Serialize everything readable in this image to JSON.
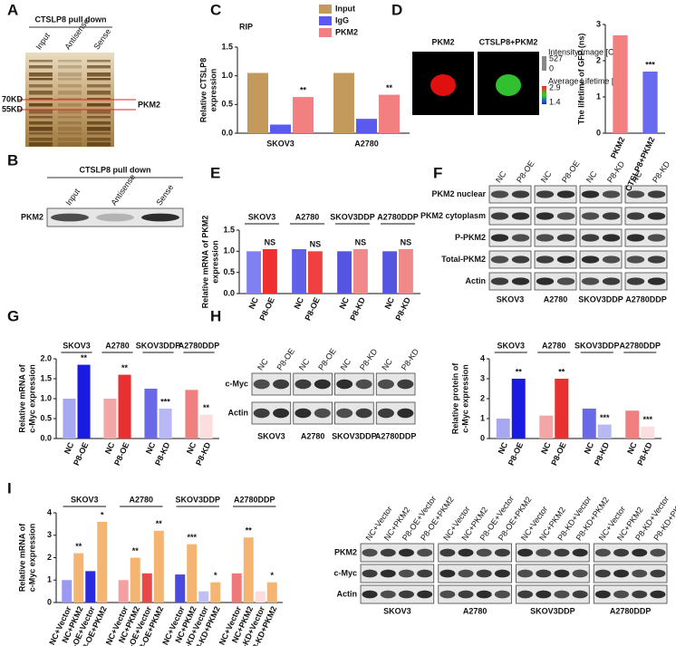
{
  "panels": [
    "A",
    "B",
    "C",
    "D",
    "E",
    "F",
    "G",
    "H",
    "I"
  ],
  "blots": {
    "a": {
      "title": "CTSLP8 pull down",
      "lanes": [
        "Input",
        "Antisense",
        "Sense"
      ],
      "markers": [
        "70KD",
        "55KD"
      ],
      "band": "PKM2"
    },
    "b": {
      "title": "CTSLP8 pull down",
      "lanes": [
        "Input",
        "Antisense",
        "Sense"
      ],
      "rows": [
        "PKM2"
      ]
    },
    "d": {
      "labels": [
        "PKM2",
        "CTSLP8+PKM2"
      ],
      "scale": [
        "Intensity Image [Cnts]",
        "527",
        "0",
        "Average Lifetime [ns]",
        "2.9",
        "1.4"
      ]
    },
    "f": {
      "lanes": [
        "NC",
        "P8-OE",
        "NC",
        "P8-OE",
        "NC",
        "P8-KD",
        "NC",
        "P8-KD"
      ],
      "rows": [
        "PKM2 nuclear",
        "PKM2 cytoplasm",
        "P-PKM2",
        "Total-PKM2",
        "Actin"
      ],
      "cells": [
        "SKOV3",
        "A2780",
        "SKOV3DDP",
        "A2780DDP"
      ]
    },
    "h": {
      "lanes": [
        "NC",
        "P8-OE",
        "NC",
        "P8-OE",
        "NC",
        "P8-KD",
        "NC",
        "P8-KD"
      ],
      "rows": [
        "c-Myc",
        "Actin"
      ],
      "cells": [
        "SKOV3",
        "A2780",
        "SKOV3DDP",
        "A2780DDP"
      ]
    },
    "i": {
      "lanes": [
        "NC+Vector",
        "NC+PKM2",
        "P8-OE+Vector",
        "P8-OE+PKM2",
        "NC+Vector",
        "NC+PKM2",
        "P8-OE+Vector",
        "P8-OE+PKM2",
        "NC+Vector",
        "NC+PKM2",
        "P8-KD+Vector",
        "P8-KD+PKM2",
        "NC+Vector",
        "NC+PKM2",
        "P8-KD+Vector",
        "P8-KD+PKM2"
      ],
      "rows": [
        "PKM2",
        "c-Myc",
        "Actin"
      ],
      "cells": [
        "SKOV3",
        "A2780",
        "SKOV3DDP",
        "A2780DDP"
      ]
    }
  },
  "chart_data": [
    {
      "type": "bar",
      "title": "RIP",
      "ylabel": [
        "Relative CTSLP8",
        "expression"
      ],
      "categories": [
        "SKOV3",
        "A2780"
      ],
      "series": [
        {
          "name": "Input",
          "color": "#c49a5c",
          "values": [
            1.05,
            1.05
          ]
        },
        {
          "name": "IgG",
          "color": "#5a5af0",
          "values": [
            0.15,
            0.25
          ]
        },
        {
          "name": "PKM2",
          "color": "#f28080",
          "values": [
            0.63,
            0.67
          ],
          "annotations": [
            "**",
            "**"
          ]
        }
      ],
      "ylim": [
        0,
        1.5
      ],
      "yticks": [
        {
          "value": 0,
          "label": "0.0"
        },
        {
          "value": 0.5,
          "label": "0.5"
        },
        {
          "value": 1,
          "label": "1.0"
        },
        {
          "value": 1.5,
          "label": "1.5"
        }
      ]
    },
    {
      "type": "bar",
      "ylabel": [
        "The lifetime of GFP (ns)"
      ],
      "categories": [
        "PKM2",
        "CTSLP8+PKM2"
      ],
      "values": [
        2.7,
        1.7
      ],
      "colors": [
        "#f28080",
        "#6a6af0"
      ],
      "annotations": [
        null,
        "***"
      ],
      "ylim": [
        0,
        3
      ],
      "yticks": [
        0,
        1,
        2,
        3
      ]
    },
    {
      "type": "bar",
      "ylabel": [
        "Relative mRNA of PKM2",
        "expression"
      ],
      "groups": [
        "SKOV3",
        "A2780",
        "SKOV3DDP",
        "A2780DDP"
      ],
      "categories": [
        "NC",
        "P8-OE",
        "NC",
        "P8-OE",
        "NC",
        "P8-KD",
        "NC",
        "P8-KD"
      ],
      "values": [
        1.0,
        1.05,
        1.05,
        1.0,
        1.0,
        1.05,
        1.0,
        1.05
      ],
      "colors": [
        "#8080f0",
        "#f03030",
        "#6060e8",
        "#f04040",
        "#5555e0",
        "#f08a8a",
        "#5555e0",
        "#f08a8a"
      ],
      "annotations": [
        null,
        "NS",
        null,
        "NS",
        null,
        "NS",
        null,
        "NS"
      ],
      "ylim": [
        0,
        1.5
      ],
      "yticks": [
        {
          "value": 0,
          "label": "0.0"
        },
        {
          "value": 0.5,
          "label": "0.5"
        },
        {
          "value": 1,
          "label": "1.0"
        },
        {
          "value": 1.5,
          "label": "1.5"
        }
      ]
    },
    {
      "type": "bar",
      "ylabel": [
        "Relative mRNA of",
        "c-Myc expression"
      ],
      "groups": [
        "SKOV3",
        "A2780",
        "SKOV3DDP",
        "A2780DDP"
      ],
      "categories": [
        "NC",
        "P8-OE",
        "NC",
        "P8-OE",
        "NC",
        "P8-KD",
        "NC",
        "P8-KD"
      ],
      "values": [
        1.0,
        1.85,
        1.0,
        1.6,
        1.25,
        0.75,
        1.22,
        0.6
      ],
      "colors": [
        "#a8a8f0",
        "#1a1ae0",
        "#f4a6a6",
        "#e83030",
        "#6a6ae8",
        "#b8b8f4",
        "#f08080",
        "#fcdede"
      ],
      "annotations": [
        null,
        "**",
        null,
        "**",
        null,
        "***",
        null,
        "**"
      ],
      "ylim": [
        0,
        2
      ],
      "yticks": [
        {
          "value": 0,
          "label": "0.0"
        },
        {
          "value": 0.5,
          "label": "0.5"
        },
        {
          "value": 1,
          "label": "1.0"
        },
        {
          "value": 1.5,
          "label": "1.5"
        },
        {
          "value": 2,
          "label": "2.0"
        }
      ]
    },
    {
      "type": "bar",
      "ylabel": [
        "Relative protein of",
        "c-Myc expression"
      ],
      "groups": [
        "SKOV3",
        "A2780",
        "SKOV3DDP",
        "A2780DDP"
      ],
      "categories": [
        "NC",
        "P8-OE",
        "NC",
        "P8-OE",
        "NC",
        "P8-KD",
        "NC",
        "P8-KD"
      ],
      "values": [
        1.0,
        3.0,
        1.15,
        3.0,
        1.5,
        0.7,
        1.4,
        0.6
      ],
      "colors": [
        "#a8a8f0",
        "#1a1ae0",
        "#f4a6a6",
        "#e83030",
        "#6a6ae8",
        "#b8b8f4",
        "#f08080",
        "#fcdede"
      ],
      "annotations": [
        null,
        "**",
        null,
        "**",
        null,
        "***",
        null,
        "***"
      ],
      "ylim": [
        0,
        4
      ],
      "yticks": [
        0,
        1,
        2,
        3,
        4
      ]
    },
    {
      "type": "bar",
      "ylabel": [
        "Relative mRNA of",
        "c-Myc expression"
      ],
      "groups": [
        "SKOV3",
        "A2780",
        "SKOV3DDP",
        "A2780DDP"
      ],
      "categories": [
        "NC+Vector",
        "NC+PKM2",
        "P8-OE+Vector",
        "P8-OE+PKM2",
        "NC+Vector",
        "NC+PKM2",
        "P8-OE+Vector",
        "P8-OE+PKM2",
        "NC+Vector",
        "NC+PKM2",
        "P8-KD+Vector",
        "P8-KD+PKM2",
        "NC+Vector",
        "NC+PKM2",
        "P8-KD+Vector",
        "P8-KD+PKM2"
      ],
      "values": [
        1.0,
        2.2,
        1.4,
        3.6,
        1.0,
        2.0,
        1.3,
        3.2,
        1.25,
        2.6,
        0.5,
        0.9,
        1.3,
        2.9,
        0.5,
        0.9
      ],
      "colors": [
        "#9a9af0",
        "#f5b572",
        "#2a2ae0",
        "#f5b572",
        "#f4a0a0",
        "#f5b572",
        "#e84848",
        "#f5b572",
        "#4a4ae0",
        "#f5b572",
        "#c0c0f4",
        "#f5b572",
        "#f07878",
        "#f5b572",
        "#fcdcdc",
        "#f5b572"
      ],
      "annotations": [
        null,
        "**",
        null,
        "*",
        null,
        "**",
        null,
        "**",
        null,
        "***",
        null,
        "*",
        null,
        "**",
        null,
        "*"
      ],
      "ylim": [
        0,
        4
      ],
      "yticks": [
        0,
        1,
        2,
        3,
        4
      ]
    }
  ]
}
